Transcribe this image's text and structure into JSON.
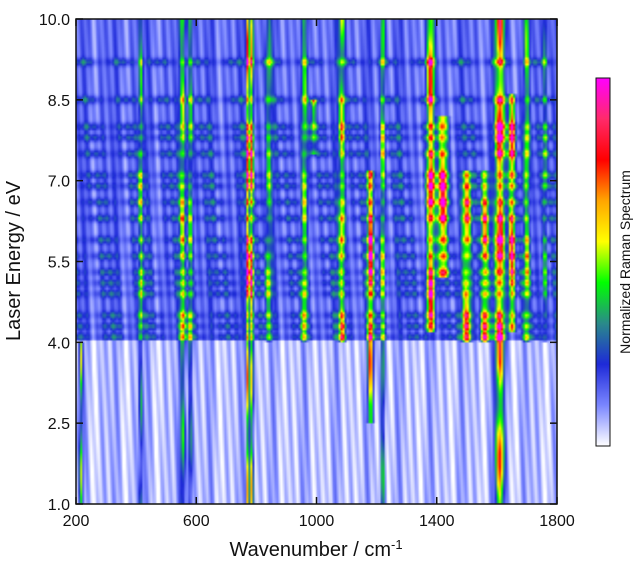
{
  "chart_data": {
    "type": "heatmap",
    "title": "",
    "xlabel": "Wavenumber / cm",
    "xlabel_superscript": "-1",
    "ylabel": "Laser Energy / eV",
    "xlim": [
      200,
      1800
    ],
    "ylim": [
      1.0,
      10.0
    ],
    "x_ticks": [
      {
        "value": 200,
        "label": "200"
      },
      {
        "value": 600,
        "label": "600"
      },
      {
        "value": 1000,
        "label": "1000"
      },
      {
        "value": 1400,
        "label": "1400"
      },
      {
        "value": 1800,
        "label": "1800"
      }
    ],
    "y_ticks": [
      {
        "value": 1.0,
        "label": "1.0"
      },
      {
        "value": 2.5,
        "label": "2.5"
      },
      {
        "value": 4.0,
        "label": "4.0"
      },
      {
        "value": 5.5,
        "label": "5.5"
      },
      {
        "value": 7.0,
        "label": "7.0"
      },
      {
        "value": 8.5,
        "label": "8.5"
      },
      {
        "value": 10.0,
        "label": "10.0"
      }
    ],
    "colorbar": {
      "label": "Normalized Raman Spectrum",
      "colors": [
        "#ff00ff",
        "#ff2a6a",
        "#ff0000",
        "#ffa500",
        "#ffff00",
        "#00ff00",
        "#2a8a8a",
        "#1e2ad8",
        "#7a86ff",
        "#ffffff"
      ]
    },
    "grid": false,
    "excitation_levels_eV": [
      4.1,
      4.3,
      4.5,
      4.9,
      5.1,
      5.3,
      5.6,
      5.9,
      6.3,
      6.6,
      6.9,
      7.1,
      7.5,
      7.8,
      8.0,
      8.5,
      9.2
    ],
    "peaks": [
      {
        "x": 216,
        "width": 6,
        "intensity": 0.6,
        "emin": 1.0,
        "emax": 4.0
      },
      {
        "x": 415,
        "width": 7,
        "intensity": 0.4,
        "emin": 1.0,
        "emax": 10.0
      },
      {
        "x": 555,
        "width": 9,
        "intensity": 0.5,
        "emin": 1.0,
        "emax": 10.0
      },
      {
        "x": 580,
        "width": 8,
        "intensity": 0.45,
        "emin": 1.0,
        "emax": 10.0
      },
      {
        "x": 772,
        "width": 5,
        "intensity": 1.0,
        "emin": 1.0,
        "emax": 10.0
      },
      {
        "x": 785,
        "width": 5,
        "intensity": 0.9,
        "emin": 1.0,
        "emax": 10.0
      },
      {
        "x": 840,
        "width": 10,
        "intensity": 0.35,
        "emin": 4.0,
        "emax": 10.0
      },
      {
        "x": 960,
        "width": 9,
        "intensity": 0.4,
        "emin": 4.0,
        "emax": 10.0
      },
      {
        "x": 990,
        "width": 9,
        "intensity": 0.45,
        "emin": 7.5,
        "emax": 8.5
      },
      {
        "x": 1085,
        "width": 10,
        "intensity": 0.6,
        "emin": 4.0,
        "emax": 10.0
      },
      {
        "x": 1180,
        "width": 9,
        "intensity": 0.95,
        "emin": 2.5,
        "emax": 7.2
      },
      {
        "x": 1220,
        "width": 7,
        "intensity": 0.5,
        "emin": 1.0,
        "emax": 10.0
      },
      {
        "x": 1380,
        "width": 12,
        "intensity": 0.85,
        "emin": 4.2,
        "emax": 10.0
      },
      {
        "x": 1420,
        "width": 16,
        "intensity": 0.9,
        "emin": 5.2,
        "emax": 8.2
      },
      {
        "x": 1500,
        "width": 14,
        "intensity": 0.7,
        "emin": 4.0,
        "emax": 7.2
      },
      {
        "x": 1560,
        "width": 12,
        "intensity": 0.75,
        "emin": 4.0,
        "emax": 7.2
      },
      {
        "x": 1610,
        "width": 14,
        "intensity": 1.0,
        "emin": 1.0,
        "emax": 10.0
      },
      {
        "x": 1650,
        "width": 10,
        "intensity": 0.9,
        "emin": 4.2,
        "emax": 8.6
      },
      {
        "x": 1700,
        "width": 9,
        "intensity": 0.45,
        "emin": 4.0,
        "emax": 10.0
      },
      {
        "x": 1760,
        "width": 8,
        "intensity": 0.35,
        "emin": 4.0,
        "emax": 10.0
      }
    ]
  }
}
